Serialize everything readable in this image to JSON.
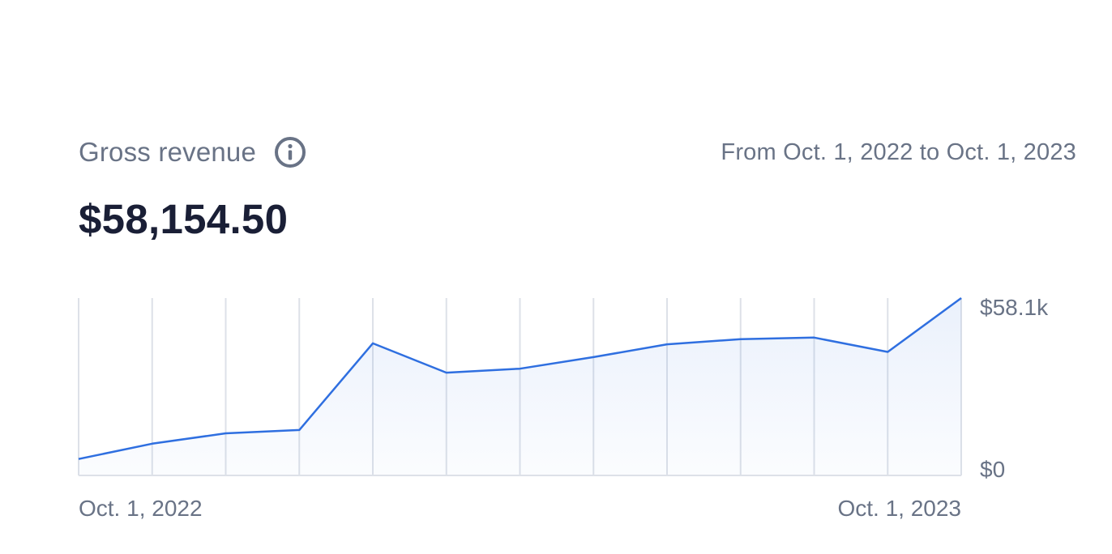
{
  "header": {
    "title": "Gross revenue",
    "info_icon": "info-circle-icon",
    "date_range": "From Oct. 1, 2022 to Oct. 1, 2023",
    "total": "$58,154.50"
  },
  "colors": {
    "line": "#2f6fe0",
    "grid": "#dde1e8",
    "muted_text": "#697386",
    "primary_text": "#1a1f36"
  },
  "chart_data": {
    "type": "area",
    "title": "",
    "xlabel": "",
    "ylabel": "",
    "ylim": [
      0,
      58154.5
    ],
    "x_tick_labels": [
      "Oct. 1, 2022",
      "Oct. 1, 2023"
    ],
    "y_tick_labels": [
      "$58.1k",
      "$0"
    ],
    "grid": true,
    "series": [
      {
        "values": [
          5400,
          10400,
          13800,
          14900,
          43300,
          33700,
          35000,
          38800,
          43000,
          44700,
          45200,
          40500,
          58154.5
        ]
      }
    ]
  }
}
